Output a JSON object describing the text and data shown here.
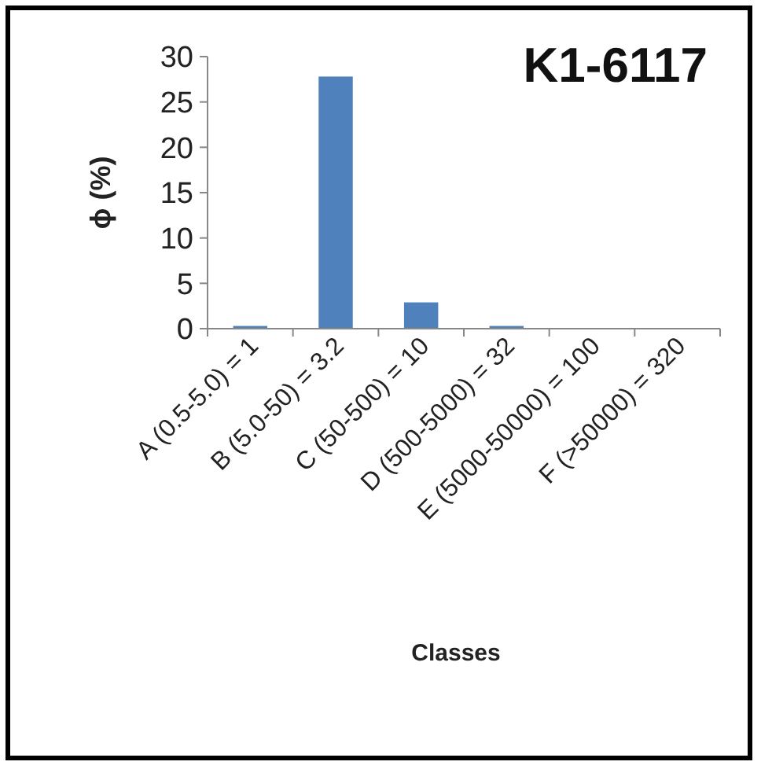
{
  "chart_data": {
    "type": "bar",
    "title": "K1-6117",
    "xlabel": "Classes",
    "ylabel": "ϕ (%)",
    "categories": [
      "A (0.5-5.0) = 1",
      "B (5.0-50) = 3.2",
      "C (50-500) = 10",
      "D (500-5000) = 32",
      "E (5000-50000) = 100",
      "F (>50000) = 320"
    ],
    "values": [
      0.3,
      27.8,
      2.9,
      0.3,
      0,
      0
    ],
    "color": "#4f81bd",
    "ylim": [
      0,
      30
    ],
    "yticks": [
      0,
      5,
      10,
      15,
      20,
      25,
      30
    ],
    "grid": false
  }
}
